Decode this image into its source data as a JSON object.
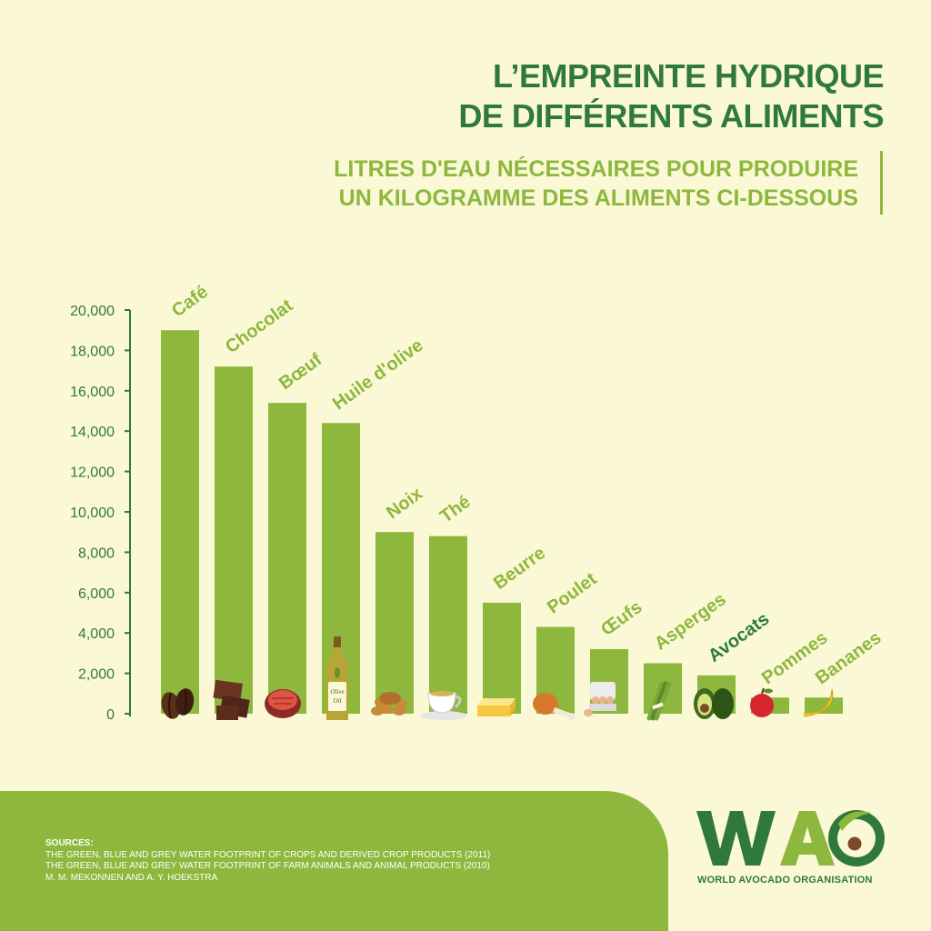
{
  "title": [
    "L’EMPREINTE HYDRIQUE",
    "DE DIFFÉRENTS ALIMENTS"
  ],
  "subtitle": [
    "LITRES D'EAU NÉCESSAIRES POUR PRODUIRE",
    "UN KILOGRAMME DES ALIMENTS CI-DESSOUS"
  ],
  "colors": {
    "background": "#fbf8d6",
    "bar": "#8db83d",
    "dark_green": "#2f7a3a",
    "light_green": "#8db83d"
  },
  "chart_data": {
    "type": "bar",
    "title": "",
    "xlabel": "",
    "ylabel": "",
    "ylim": [
      0,
      20000
    ],
    "yticks": [
      "20,000",
      "18,000",
      "16,000",
      "14,000",
      "12,000",
      "10,000",
      "8,000",
      "6,000",
      "4,000",
      "2,000",
      "0"
    ],
    "ytick_values": [
      20000,
      18000,
      16000,
      14000,
      12000,
      10000,
      8000,
      6000,
      4000,
      2000,
      0
    ],
    "grid": false,
    "categories": [
      "Café",
      "Chocolat",
      "Bœuf",
      "Huile d'olive",
      "Noix",
      "Thé",
      "Beurre",
      "Poulet",
      "Œufs",
      "Asperges",
      "Avocats",
      "Pommes",
      "Bananes"
    ],
    "values": [
      19000,
      17200,
      15400,
      14400,
      9000,
      8800,
      5500,
      4300,
      3200,
      2500,
      1900,
      800,
      800
    ],
    "icons": [
      "coffee-beans-icon",
      "chocolate-icon",
      "steak-icon",
      "olive-oil-bottle-icon",
      "nuts-icon",
      "tea-cup-icon",
      "butter-icon",
      "chicken-leg-icon",
      "eggs-icon",
      "asparagus-icon",
      "avocado-icon",
      "apple-icon",
      "banana-icon"
    ],
    "bottle_label": [
      "Olive",
      "Oil"
    ]
  },
  "sources": {
    "heading": "SOURCES:",
    "lines": [
      "THE GREEN, BLUE AND GREY WATER FOOTPRINT OF CROPS AND DERIVED CROP PRODUCTS (2011)",
      "THE GREEN, BLUE AND GREY WATER FOOTPRINT OF FARM ANIMALS AND ANIMAL PRODUCTS  (2010)",
      "M. M. MEKONNEN AND A. Y. HOEKSTRA"
    ]
  },
  "logo": {
    "letters": "WAO",
    "tagline": "WORLD AVOCADO ORGANISATION"
  }
}
